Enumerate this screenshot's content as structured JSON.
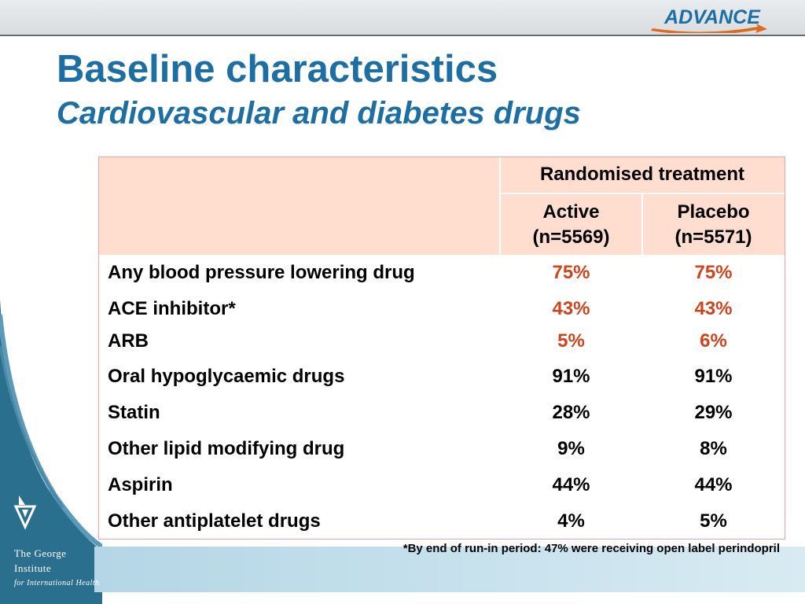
{
  "logo": {
    "text": "ADVANCE"
  },
  "title": "Baseline characteristics",
  "subtitle": "Cardiovascular and diabetes drugs",
  "table": {
    "group_header": "Randomised treatment",
    "columns": [
      {
        "line1": "Active",
        "line2": "(n=5569)"
      },
      {
        "line1": "Placebo",
        "line2": "(n=5571)"
      }
    ],
    "rows": [
      {
        "label": "Any blood pressure lowering drug",
        "active": "75%",
        "placebo": "75%"
      },
      {
        "label": "ACE inhibitor*",
        "active": "43%",
        "placebo": "43%"
      },
      {
        "label": "ARB",
        "active": "5%",
        "placebo": "6%"
      },
      {
        "label": "Oral hypoglycaemic drugs",
        "active": "91%",
        "placebo": "91%"
      },
      {
        "label": "Statin",
        "active": "28%",
        "placebo": "29%"
      },
      {
        "label": "Other lipid modifying drug",
        "active": "9%",
        "placebo": "8%"
      },
      {
        "label": "Aspirin",
        "active": "44%",
        "placebo": "44%"
      },
      {
        "label": "Other antiplatelet drugs",
        "active": "4%",
        "placebo": "5%"
      }
    ]
  },
  "footnote": "*By end of run-in period: 47% were receiving open label perindopril",
  "institute": {
    "line1": "The George",
    "line2": "Institute",
    "line3": "for International Health"
  },
  "colors": {
    "title": "#1d6fa3",
    "highlight": "#d0431c",
    "header_bg": "#ffded0",
    "border": "#f1a4a0"
  }
}
